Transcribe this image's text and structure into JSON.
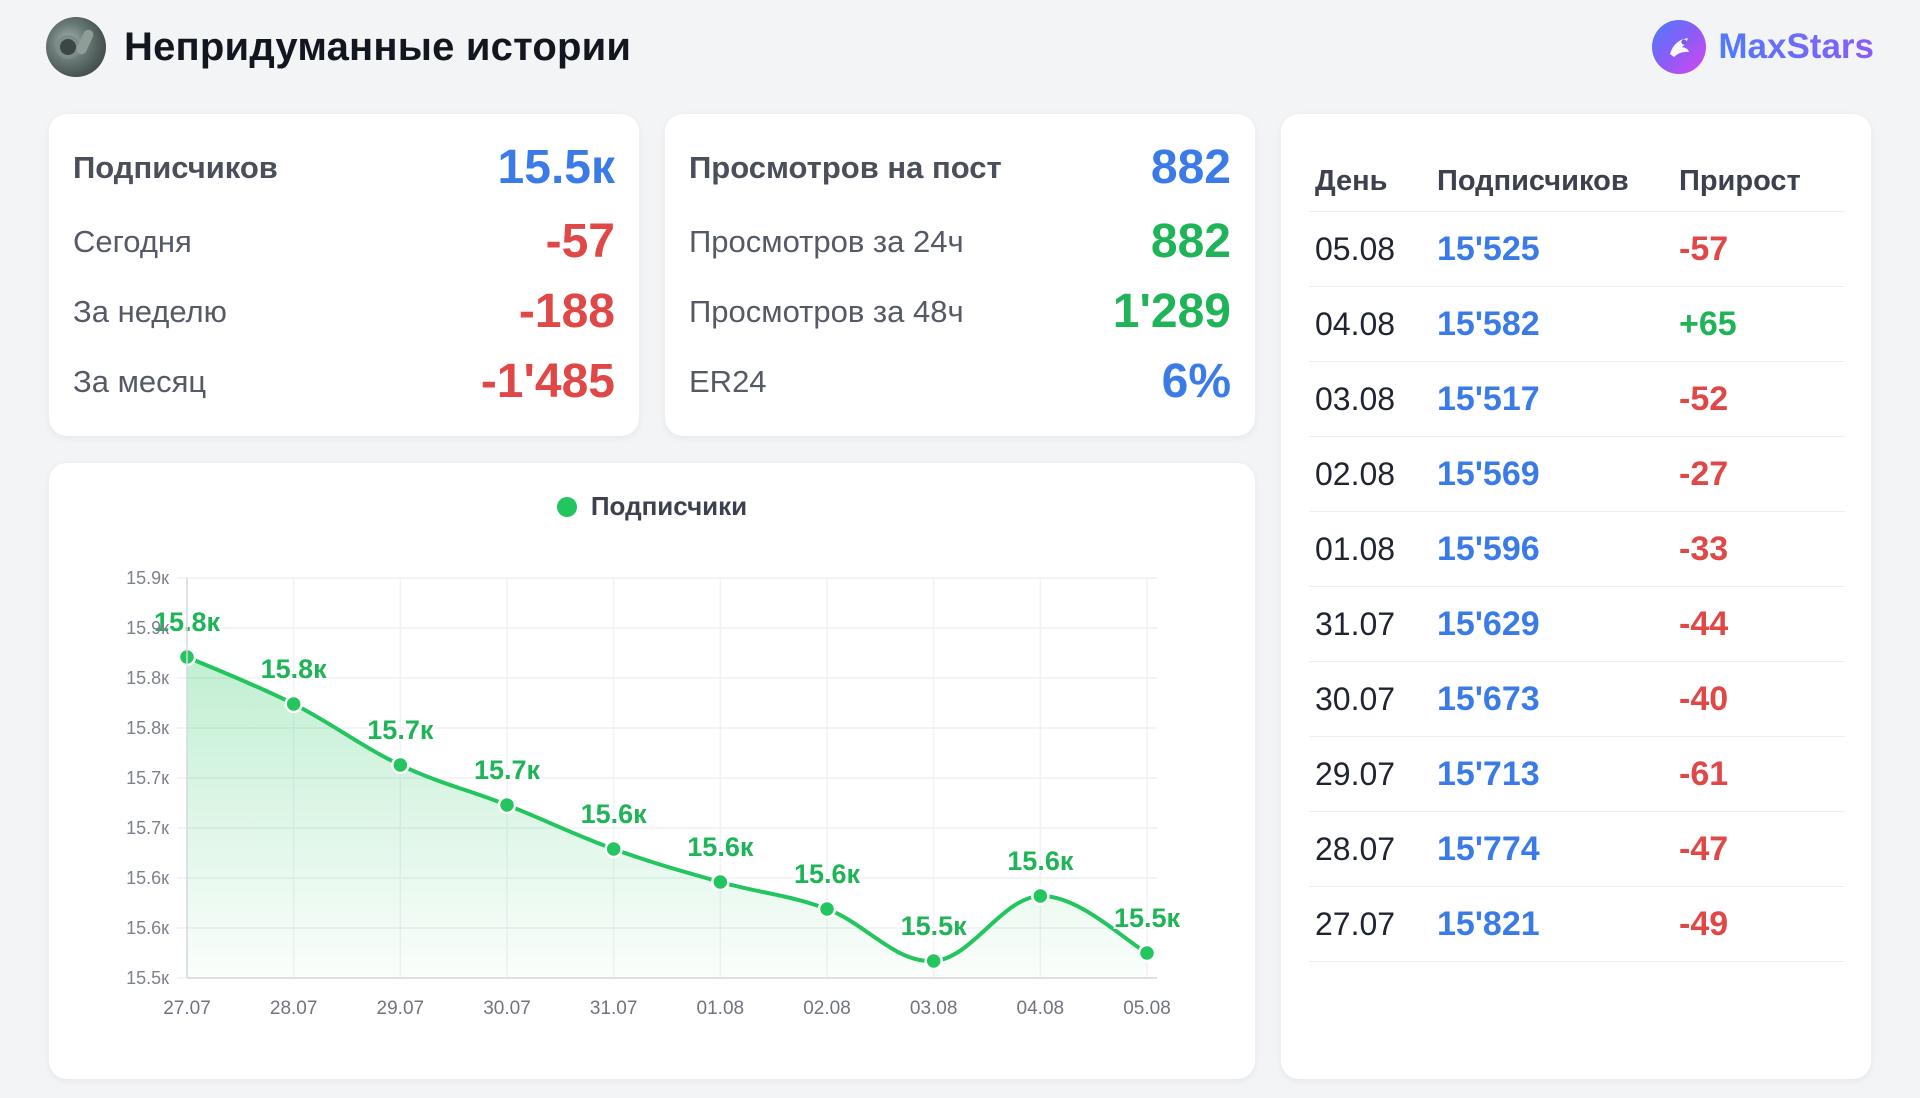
{
  "header": {
    "channel_title": "Непридуманные истории",
    "brand": "MaxStars",
    "avatar_icon": "channel-avatar",
    "brand_icon": "maxstars-logo-icon"
  },
  "colors": {
    "blue": "#3b7be8",
    "red": "#e04848",
    "green": "#1fb457",
    "line": "#22c55e"
  },
  "subscribers_card": {
    "title_label": "Подписчиков",
    "title_value": "15.5к",
    "rows": [
      {
        "label": "Сегодня",
        "value": "-57"
      },
      {
        "label": "За неделю",
        "value": "-188"
      },
      {
        "label": "За месяц",
        "value": "-1'485"
      }
    ]
  },
  "views_card": {
    "title_label": "Просмотров на пост",
    "title_value": "882",
    "rows": [
      {
        "label": "Просмотров за 24ч",
        "value": "882"
      },
      {
        "label": "Просмотров за 48ч",
        "value": "1'289"
      },
      {
        "label": "ER24",
        "value": "6%"
      }
    ]
  },
  "chart_data": {
    "type": "area",
    "legend": "Подписчики",
    "legend_position": "top-center",
    "categories": [
      "27.07",
      "28.07",
      "29.07",
      "30.07",
      "31.07",
      "01.08",
      "02.08",
      "03.08",
      "04.08",
      "05.08"
    ],
    "series": [
      {
        "name": "Подписчики",
        "values": [
          15821,
          15774,
          15713,
          15673,
          15629,
          15596,
          15569,
          15517,
          15582,
          15525
        ],
        "data_labels": [
          "15.8к",
          "15.8к",
          "15.7к",
          "15.7к",
          "15.6к",
          "15.6к",
          "15.6к",
          "15.5к",
          "15.6к",
          "15.5к"
        ]
      }
    ],
    "y_ticks": [
      15500,
      15550,
      15600,
      15650,
      15700,
      15750,
      15800,
      15850,
      15900
    ],
    "y_tick_labels": [
      "15.5к",
      "15.6к",
      "15.6к",
      "15.7к",
      "15.7к",
      "15.8к",
      "15.8к",
      "15.9к",
      "15.9к"
    ],
    "ylim": [
      15500,
      15900
    ],
    "grid": true
  },
  "table": {
    "headers": [
      "День",
      "Подписчиков",
      "Прирост"
    ],
    "rows": [
      {
        "day": "05.08",
        "subs": "15'525",
        "delta": "-57"
      },
      {
        "day": "04.08",
        "subs": "15'582",
        "delta": "+65"
      },
      {
        "day": "03.08",
        "subs": "15'517",
        "delta": "-52"
      },
      {
        "day": "02.08",
        "subs": "15'569",
        "delta": "-27"
      },
      {
        "day": "01.08",
        "subs": "15'596",
        "delta": "-33"
      },
      {
        "day": "31.07",
        "subs": "15'629",
        "delta": "-44"
      },
      {
        "day": "30.07",
        "subs": "15'673",
        "delta": "-40"
      },
      {
        "day": "29.07",
        "subs": "15'713",
        "delta": "-61"
      },
      {
        "day": "28.07",
        "subs": "15'774",
        "delta": "-47"
      },
      {
        "day": "27.07",
        "subs": "15'821",
        "delta": "-49"
      }
    ]
  }
}
